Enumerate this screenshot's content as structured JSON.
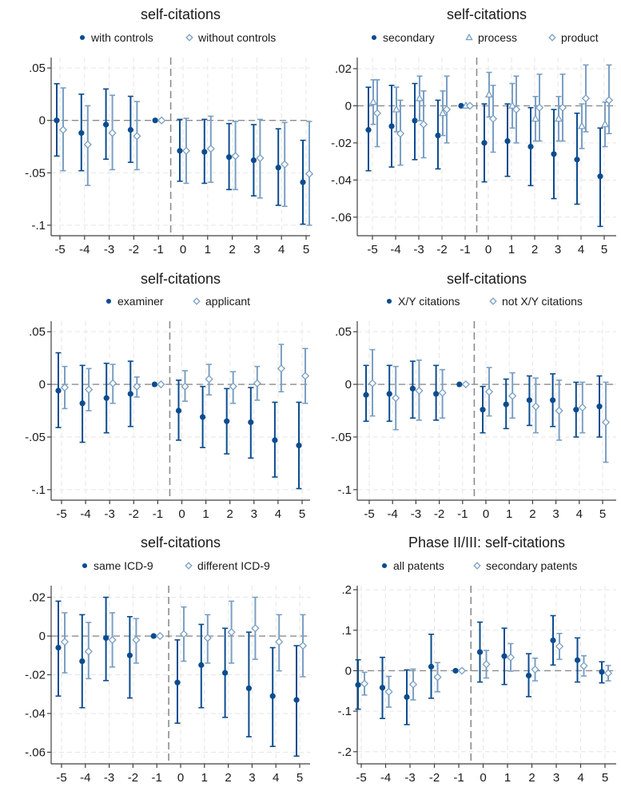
{
  "colors": {
    "secondary_series": "#0b4c8f",
    "comparison_series": "#7a9fc4",
    "reference_line": "#8c8c8c",
    "grid": "#e6e6e6",
    "axis": "#404040",
    "text": "#1a1a1a"
  },
  "chart_data": [
    {
      "type": "scatter",
      "title": "self-citations",
      "x": [
        "-5",
        "-4",
        "-3",
        "-2",
        "-1",
        "0",
        "1",
        "2",
        "3",
        "4",
        "5"
      ],
      "yticks": [
        ".05",
        "0",
        "-.05",
        "-.1"
      ],
      "ylim": [
        -0.11,
        0.06
      ],
      "series": [
        {
          "name": "with controls",
          "marker": "circle",
          "values": [
            0,
            -0.012,
            -0.004,
            -0.009,
            0,
            -0.029,
            -0.03,
            -0.035,
            -0.038,
            -0.045,
            -0.059
          ],
          "lower": [
            -0.034,
            -0.048,
            -0.037,
            -0.04,
            0,
            -0.058,
            -0.06,
            -0.066,
            -0.072,
            -0.081,
            -0.099
          ],
          "upper": [
            0.035,
            0.025,
            0.03,
            0.023,
            0,
            0.001,
            0.001,
            -0.003,
            -0.004,
            -0.008,
            -0.019
          ]
        },
        {
          "name": "without controls",
          "marker": "diamond",
          "values": [
            -0.009,
            -0.023,
            -0.012,
            -0.015,
            0,
            -0.029,
            -0.027,
            -0.034,
            -0.036,
            -0.042,
            -0.051
          ],
          "lower": [
            -0.048,
            -0.062,
            -0.047,
            -0.047,
            0,
            -0.06,
            -0.059,
            -0.066,
            -0.074,
            -0.082,
            -0.1
          ],
          "upper": [
            0.031,
            0.014,
            0.024,
            0.018,
            0,
            0.002,
            0.004,
            -0.001,
            0.001,
            -0.002,
            -0.001
          ]
        }
      ]
    },
    {
      "type": "scatter",
      "title": "self-citations",
      "x": [
        "-5",
        "-4",
        "-3",
        "-2",
        "-1",
        "0",
        "1",
        "2",
        "3",
        "4",
        "5"
      ],
      "yticks": [
        ".02",
        "0",
        "-.02",
        "-.04",
        "-.06"
      ],
      "ylim": [
        -0.07,
        0.026
      ],
      "series": [
        {
          "name": "secondary",
          "marker": "circle",
          "values": [
            -0.013,
            -0.011,
            -0.008,
            -0.016,
            0,
            -0.02,
            -0.019,
            -0.022,
            -0.026,
            -0.029,
            -0.038
          ],
          "lower": [
            -0.035,
            -0.033,
            -0.029,
            -0.034,
            0,
            -0.041,
            -0.038,
            -0.043,
            -0.05,
            -0.053,
            -0.065
          ],
          "upper": [
            0.01,
            0.011,
            0.012,
            0.003,
            0,
            0.001,
            0.001,
            -0.001,
            -0.002,
            -0.004,
            -0.012
          ]
        },
        {
          "name": "process",
          "marker": "triangle",
          "values": [
            0.002,
            -0.002,
            0.004,
            -0.004,
            0,
            0.006,
            0,
            -0.007,
            -0.007,
            -0.011,
            -0.01
          ],
          "lower": [
            -0.01,
            -0.014,
            -0.008,
            -0.016,
            0,
            -0.006,
            -0.012,
            -0.019,
            -0.019,
            -0.023,
            -0.022
          ],
          "upper": [
            0.014,
            0.01,
            0.016,
            0.008,
            0,
            0.018,
            0.012,
            0.005,
            0.005,
            0.001,
            0.002
          ]
        },
        {
          "name": "product",
          "marker": "diamond",
          "values": [
            -0.004,
            -0.015,
            -0.01,
            -0.002,
            0,
            -0.007,
            -0.002,
            -0.001,
            -0.001,
            0.004,
            0.003
          ],
          "lower": [
            -0.022,
            -0.032,
            -0.028,
            -0.02,
            0,
            -0.025,
            -0.02,
            -0.019,
            -0.019,
            -0.014,
            -0.015
          ],
          "upper": [
            0.014,
            0.003,
            0.008,
            0.016,
            0,
            0.011,
            0.016,
            0.017,
            0.017,
            0.022,
            0.022
          ]
        }
      ]
    },
    {
      "type": "scatter",
      "title": "self-citations",
      "x": [
        "-5",
        "-4",
        "-3",
        "-2",
        "-1",
        "0",
        "1",
        "2",
        "3",
        "4",
        "5"
      ],
      "yticks": [
        ".05",
        "0",
        "-.05",
        "-.1"
      ],
      "ylim": [
        -0.11,
        0.06
      ],
      "series": [
        {
          "name": "examiner",
          "marker": "circle",
          "values": [
            -0.006,
            -0.018,
            -0.013,
            -0.009,
            0,
            -0.025,
            -0.031,
            -0.035,
            -0.036,
            -0.053,
            -0.058
          ],
          "lower": [
            -0.041,
            -0.055,
            -0.046,
            -0.04,
            0,
            -0.053,
            -0.06,
            -0.066,
            -0.07,
            -0.088,
            -0.099
          ],
          "upper": [
            0.03,
            0.018,
            0.02,
            0.022,
            0,
            0.004,
            -0.002,
            -0.004,
            -0.003,
            -0.017,
            -0.017
          ]
        },
        {
          "name": "applicant",
          "marker": "diamond",
          "values": [
            -0.003,
            -0.005,
            0.001,
            -0.002,
            0,
            -0.002,
            0.005,
            -0.002,
            0.001,
            0.015,
            0.008
          ],
          "lower": [
            -0.023,
            -0.025,
            -0.018,
            -0.012,
            0,
            -0.016,
            -0.01,
            -0.018,
            -0.015,
            -0.007,
            -0.018
          ],
          "upper": [
            0.017,
            0.015,
            0.019,
            0.007,
            0,
            0.013,
            0.019,
            0.012,
            0.017,
            0.038,
            0.034
          ]
        }
      ]
    },
    {
      "type": "scatter",
      "title": "self-citations",
      "x": [
        "-5",
        "-4",
        "-3",
        "-2",
        "-1",
        "0",
        "1",
        "2",
        "3",
        "4",
        "5"
      ],
      "yticks": [
        ".05",
        "0",
        "-.05",
        "-.1"
      ],
      "ylim": [
        -0.11,
        0.06
      ],
      "series": [
        {
          "name": "X/Y citations",
          "marker": "circle",
          "values": [
            -0.01,
            -0.009,
            -0.004,
            -0.009,
            0,
            -0.024,
            -0.019,
            -0.015,
            -0.015,
            -0.024,
            -0.021
          ],
          "lower": [
            -0.035,
            -0.035,
            -0.032,
            -0.034,
            0,
            -0.046,
            -0.042,
            -0.039,
            -0.04,
            -0.05,
            -0.05
          ],
          "upper": [
            0.018,
            0.018,
            0.022,
            0.018,
            0,
            -0.002,
            0.005,
            0.008,
            0.01,
            0.002,
            0.008
          ]
        },
        {
          "name": "not X/Y citations",
          "marker": "diamond",
          "values": [
            0.001,
            -0.013,
            -0.006,
            -0.008,
            0,
            -0.007,
            -0.011,
            -0.021,
            -0.025,
            -0.022,
            -0.036
          ],
          "lower": [
            -0.03,
            -0.043,
            -0.034,
            -0.032,
            0,
            -0.03,
            -0.032,
            -0.046,
            -0.053,
            -0.046,
            -0.074
          ],
          "upper": [
            0.033,
            0.017,
            0.023,
            0.014,
            0,
            0.016,
            0.011,
            0.006,
            0.004,
            0.002,
            0.002
          ]
        }
      ]
    },
    {
      "type": "scatter",
      "title": "self-citations",
      "x": [
        "-5",
        "-4",
        "-3",
        "-2",
        "-1",
        "0",
        "1",
        "2",
        "3",
        "4",
        "5"
      ],
      "yticks": [
        ".02",
        "0",
        "-.02",
        "-.04",
        "-.06"
      ],
      "ylim": [
        -0.066,
        0.026
      ],
      "series": [
        {
          "name": "same ICD-9",
          "marker": "circle",
          "values": [
            -0.006,
            -0.013,
            -0.001,
            -0.01,
            0,
            -0.024,
            -0.015,
            -0.019,
            -0.027,
            -0.031,
            -0.033
          ],
          "lower": [
            -0.031,
            -0.037,
            -0.023,
            -0.032,
            0,
            -0.045,
            -0.037,
            -0.042,
            -0.052,
            -0.057,
            -0.062
          ],
          "upper": [
            0.018,
            0.011,
            0.02,
            0.01,
            0,
            -0.002,
            0.006,
            0.004,
            0.002,
            -0.006,
            -0.005
          ]
        },
        {
          "name": "different ICD-9",
          "marker": "diamond",
          "values": [
            -0.003,
            -0.008,
            -0.002,
            -0.002,
            0,
            0.001,
            -0.001,
            0.002,
            0.004,
            -0.003,
            -0.005
          ],
          "lower": [
            -0.019,
            -0.022,
            -0.016,
            -0.014,
            0,
            -0.013,
            -0.014,
            -0.014,
            -0.012,
            -0.018,
            -0.021
          ],
          "upper": [
            0.012,
            0.007,
            0.012,
            0.009,
            0,
            0.015,
            0.011,
            0.018,
            0.02,
            0.011,
            0.011
          ]
        }
      ]
    },
    {
      "type": "scatter",
      "title": "Phase II/III: self-citations",
      "x": [
        "-5",
        "-4",
        "-3",
        "-2",
        "-1",
        "0",
        "1",
        "2",
        "3",
        "4",
        "5"
      ],
      "yticks": [
        ".2",
        ".1",
        "0",
        "-.1",
        "-.2"
      ],
      "ylim": [
        -0.23,
        0.21
      ],
      "series": [
        {
          "name": "all patents",
          "marker": "circle",
          "values": [
            -0.035,
            -0.042,
            -0.065,
            0.01,
            0,
            0.046,
            0.036,
            -0.012,
            0.075,
            0.026,
            -0.003
          ],
          "lower": [
            -0.095,
            -0.118,
            -0.133,
            -0.068,
            0,
            -0.028,
            -0.034,
            -0.064,
            0.014,
            -0.028,
            -0.03
          ],
          "upper": [
            0.027,
            0.033,
            0.002,
            0.09,
            0,
            0.12,
            0.105,
            0.042,
            0.136,
            0.081,
            0.022
          ]
        },
        {
          "name": "secondary patents",
          "marker": "diamond",
          "values": [
            -0.032,
            -0.052,
            -0.034,
            -0.016,
            0,
            0.016,
            0.033,
            0.003,
            0.06,
            0.012,
            -0.006
          ],
          "lower": [
            -0.06,
            -0.09,
            -0.072,
            -0.052,
            0,
            -0.018,
            -0.001,
            -0.025,
            0.028,
            -0.013,
            -0.025
          ],
          "upper": [
            -0.004,
            -0.014,
            0.004,
            0.02,
            0,
            0.05,
            0.067,
            0.031,
            0.092,
            0.037,
            0.013
          ]
        }
      ]
    }
  ]
}
